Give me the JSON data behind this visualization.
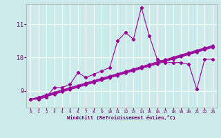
{
  "bg_color": "#cceaea",
  "grid_color": "#ffffff",
  "line_color": "#990099",
  "xlim": [
    -0.5,
    23.5
  ],
  "ylim": [
    8.5,
    11.6
  ],
  "yticks": [
    9,
    10,
    11
  ],
  "xticks": [
    0,
    1,
    2,
    3,
    4,
    5,
    6,
    7,
    8,
    9,
    10,
    11,
    12,
    13,
    14,
    15,
    16,
    17,
    18,
    19,
    20,
    21,
    22,
    23
  ],
  "xlabel": "Windchill (Refroidissement éolien,°C)",
  "series_jagged": [
    8.75,
    8.75,
    8.82,
    9.1,
    9.1,
    9.2,
    9.55,
    9.4,
    9.5,
    9.6,
    9.7,
    10.5,
    10.75,
    10.55,
    11.5,
    10.65,
    9.95,
    9.85,
    9.85,
    9.85,
    9.8,
    9.05,
    9.95,
    9.95
  ],
  "series_linear": [
    [
      8.75,
      8.78,
      8.83,
      8.9,
      8.97,
      9.04,
      9.11,
      9.18,
      9.25,
      9.32,
      9.39,
      9.46,
      9.53,
      9.6,
      9.67,
      9.74,
      9.81,
      9.88,
      9.95,
      10.02,
      10.09,
      10.16,
      10.23,
      10.3
    ],
    [
      8.75,
      8.79,
      8.85,
      8.92,
      8.99,
      9.06,
      9.13,
      9.2,
      9.27,
      9.34,
      9.41,
      9.48,
      9.55,
      9.62,
      9.69,
      9.76,
      9.83,
      9.9,
      9.97,
      10.04,
      10.11,
      10.18,
      10.25,
      10.32
    ],
    [
      8.75,
      8.8,
      8.87,
      8.94,
      9.01,
      9.08,
      9.15,
      9.22,
      9.29,
      9.36,
      9.43,
      9.5,
      9.57,
      9.64,
      9.71,
      9.78,
      9.85,
      9.92,
      9.99,
      10.06,
      10.13,
      10.2,
      10.27,
      10.34
    ],
    [
      8.75,
      8.81,
      8.89,
      8.96,
      9.03,
      9.1,
      9.17,
      9.24,
      9.31,
      9.38,
      9.45,
      9.52,
      9.59,
      9.66,
      9.73,
      9.8,
      9.87,
      9.94,
      10.01,
      10.08,
      10.15,
      10.22,
      10.29,
      10.36
    ]
  ]
}
